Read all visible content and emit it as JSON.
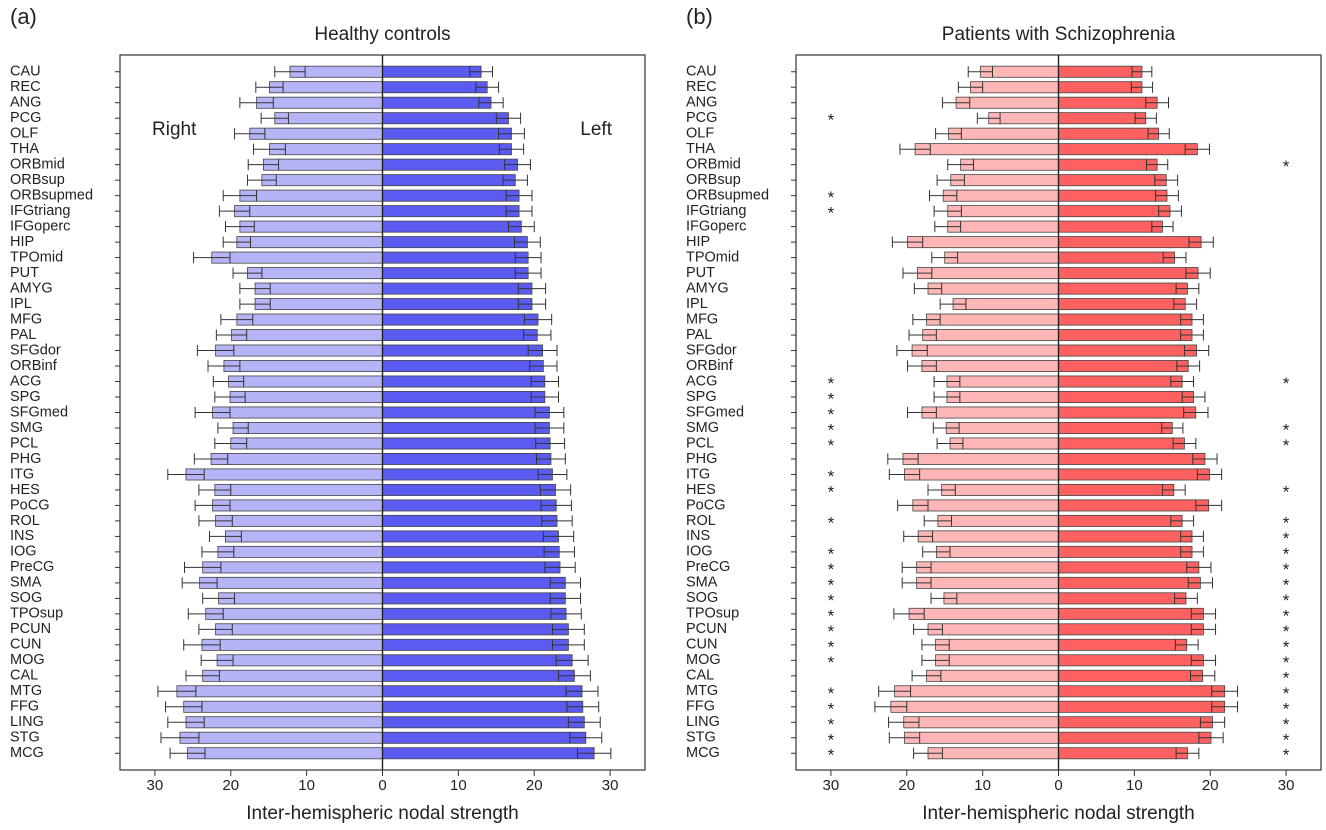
{
  "chart_data": [
    {
      "type": "bar",
      "label": "(a)",
      "title": "Healthy controls",
      "xlabel": "Inter-hemispheric nodal strength",
      "categories": [
        "CAU",
        "REC",
        "ANG",
        "PCG",
        "OLF",
        "THA",
        "ORBmid",
        "ORBsup",
        "ORBsupmed",
        "IFGtriang",
        "IFGoperc",
        "HIP",
        "TPOmid",
        "PUT",
        "AMYG",
        "IPL",
        "MFG",
        "PAL",
        "SFGdor",
        "ORBinf",
        "ACG",
        "SPG",
        "SFGmed",
        "SMG",
        "PCL",
        "PHG",
        "ITG",
        "HES",
        "PoCG",
        "ROL",
        "INS",
        "IOG",
        "PreCG",
        "SMA",
        "SOG",
        "TPOsup",
        "PCUN",
        "CUN",
        "MOG",
        "CAL",
        "MTG",
        "FFG",
        "LING",
        "STG",
        "MCG"
      ],
      "series": [
        {
          "name": "Right",
          "color": "#b4b4f7",
          "values": [
            12.2,
            14.9,
            16.6,
            14.2,
            17.5,
            14.9,
            15.7,
            15.9,
            18.8,
            19.5,
            18.8,
            19.2,
            22.5,
            17.8,
            16.8,
            16.8,
            19.2,
            19.9,
            22.0,
            20.9,
            20.3,
            20.1,
            22.4,
            19.7,
            20.0,
            22.6,
            25.9,
            22.1,
            22.4,
            22.0,
            20.7,
            21.7,
            23.7,
            24.1,
            21.6,
            23.3,
            22.0,
            23.8,
            21.8,
            23.7,
            27.1,
            26.2,
            25.9,
            26.7,
            25.7
          ],
          "errors": [
            2.0,
            1.8,
            2.2,
            1.8,
            2.0,
            2.1,
            2.0,
            1.9,
            2.2,
            2.0,
            1.9,
            1.8,
            2.4,
            1.9,
            2.0,
            2.0,
            2.1,
            2.0,
            2.4,
            2.1,
            2.0,
            2.0,
            2.3,
            2.0,
            2.1,
            2.2,
            2.4,
            2.1,
            2.3,
            2.2,
            2.1,
            2.1,
            2.4,
            2.3,
            2.1,
            2.3,
            2.2,
            2.4,
            2.1,
            2.2,
            2.5,
            2.4,
            2.4,
            2.5,
            2.3
          ]
        },
        {
          "name": "Left",
          "color": "#5b5bf2",
          "values": [
            13.0,
            13.8,
            14.3,
            16.6,
            17.0,
            17.0,
            17.8,
            17.5,
            18.0,
            18.0,
            18.3,
            19.1,
            19.2,
            19.2,
            19.7,
            19.7,
            20.5,
            20.4,
            21.1,
            21.2,
            21.4,
            21.4,
            22.0,
            22.0,
            22.1,
            22.2,
            22.4,
            22.8,
            22.9,
            23.0,
            23.2,
            23.3,
            23.4,
            24.1,
            24.1,
            24.2,
            24.5,
            24.5,
            25.0,
            25.3,
            26.3,
            26.4,
            26.6,
            26.8,
            27.9
          ],
          "errors": [
            1.5,
            1.5,
            1.6,
            1.6,
            1.7,
            1.6,
            1.7,
            1.6,
            1.7,
            1.7,
            1.7,
            1.7,
            1.7,
            1.7,
            1.8,
            1.8,
            1.8,
            1.8,
            1.9,
            1.8,
            1.8,
            1.8,
            1.9,
            1.9,
            1.9,
            1.9,
            1.9,
            2.0,
            2.0,
            2.0,
            2.0,
            2.0,
            2.0,
            2.0,
            2.0,
            2.0,
            2.1,
            2.1,
            2.1,
            2.1,
            2.1,
            2.1,
            2.1,
            2.1,
            2.2
          ]
        }
      ],
      "xlim": [
        -34.6,
        34.6
      ],
      "xticks": [
        {
          "value": -30,
          "label": "30"
        },
        {
          "value": -20,
          "label": "20"
        },
        {
          "value": -10,
          "label": "10"
        },
        0,
        10,
        20,
        30
      ]
    },
    {
      "type": "bar",
      "label": "(b)",
      "title": "Patients with Schizophrenia",
      "xlabel": "Inter-hemispheric nodal strength",
      "categories": [
        "CAU",
        "REC",
        "ANG",
        "PCG",
        "OLF",
        "THA",
        "ORBmid",
        "ORBsup",
        "ORBsupmed",
        "IFGtriang",
        "IFGoperc",
        "HIP",
        "TPOmid",
        "PUT",
        "AMYG",
        "IPL",
        "MFG",
        "PAL",
        "SFGdor",
        "ORBinf",
        "ACG",
        "SPG",
        "SFGmed",
        "SMG",
        "PCL",
        "PHG",
        "ITG",
        "HES",
        "PoCG",
        "ROL",
        "INS",
        "IOG",
        "PreCG",
        "SMA",
        "SOG",
        "TPOsup",
        "PCUN",
        "CUN",
        "MOG",
        "CAL",
        "MTG",
        "FFG",
        "LING",
        "STG",
        "MCG"
      ],
      "series": [
        {
          "color": "#ffb6b6",
          "values": [
            10.3,
            11.6,
            13.5,
            9.2,
            14.5,
            18.9,
            12.9,
            14.2,
            15.2,
            14.6,
            14.6,
            19.9,
            15.0,
            18.6,
            17.2,
            13.9,
            17.4,
            17.9,
            19.3,
            18.0,
            14.7,
            14.7,
            18.0,
            14.8,
            14.3,
            20.5,
            20.3,
            15.4,
            19.2,
            15.9,
            18.5,
            16.1,
            18.7,
            18.7,
            15.1,
            19.7,
            17.2,
            16.2,
            16.2,
            17.4,
            21.6,
            22.1,
            20.4,
            20.3,
            17.2
          ],
          "errors": [
            1.6,
            1.6,
            1.8,
            1.5,
            1.7,
            2.0,
            1.7,
            1.8,
            1.8,
            1.8,
            1.7,
            2.0,
            1.7,
            1.9,
            1.8,
            1.7,
            1.8,
            1.8,
            2.0,
            1.9,
            1.7,
            1.7,
            1.9,
            1.7,
            1.7,
            2.0,
            2.0,
            1.8,
            2.0,
            1.8,
            1.9,
            1.8,
            1.9,
            1.9,
            1.7,
            2.0,
            1.9,
            1.8,
            1.8,
            1.9,
            2.1,
            2.1,
            2.0,
            2.0,
            1.9
          ],
          "significance": [
            null,
            null,
            null,
            "*",
            null,
            null,
            null,
            null,
            "*",
            "*",
            null,
            null,
            null,
            null,
            null,
            null,
            null,
            null,
            null,
            null,
            "*",
            "*",
            "*",
            "*",
            "*",
            null,
            "*",
            "*",
            null,
            "*",
            null,
            "*",
            "*",
            "*",
            "*",
            "*",
            "*",
            "*",
            "*",
            null,
            "*",
            "*",
            "*",
            "*",
            "*"
          ]
        },
        {
          "color": "#ff6060",
          "values": [
            11.0,
            11.0,
            13.0,
            11.5,
            13.2,
            18.3,
            13.0,
            14.2,
            14.3,
            14.7,
            13.7,
            18.8,
            15.3,
            18.4,
            17.0,
            16.7,
            17.6,
            17.6,
            18.2,
            17.1,
            16.3,
            17.8,
            18.1,
            15.0,
            16.6,
            19.3,
            19.9,
            15.2,
            19.8,
            16.3,
            17.6,
            17.6,
            18.5,
            18.7,
            16.8,
            19.1,
            19.1,
            16.9,
            19.1,
            19.0,
            21.9,
            21.9,
            20.3,
            20.1,
            17.0
          ],
          "errors": [
            1.3,
            1.4,
            1.5,
            1.4,
            1.4,
            1.6,
            1.4,
            1.5,
            1.5,
            1.5,
            1.4,
            1.6,
            1.5,
            1.6,
            1.5,
            1.5,
            1.5,
            1.5,
            1.6,
            1.5,
            1.5,
            1.5,
            1.6,
            1.4,
            1.5,
            1.6,
            1.6,
            1.5,
            1.7,
            1.5,
            1.5,
            1.5,
            1.6,
            1.6,
            1.5,
            1.6,
            1.6,
            1.5,
            1.6,
            1.6,
            1.7,
            1.7,
            1.6,
            1.6,
            1.5
          ],
          "significance": [
            null,
            null,
            null,
            null,
            null,
            null,
            "*",
            null,
            null,
            null,
            null,
            null,
            null,
            null,
            null,
            null,
            null,
            null,
            null,
            null,
            "*",
            null,
            null,
            "*",
            "*",
            null,
            null,
            "*",
            null,
            "*",
            "*",
            "*",
            "*",
            "*",
            "*",
            "*",
            "*",
            "*",
            "*",
            "*",
            "*",
            "*",
            "*",
            "*",
            "*"
          ]
        }
      ],
      "xlim": [
        -34.6,
        34.6
      ],
      "xticks": [
        {
          "value": -30,
          "label": "30"
        },
        {
          "value": -20,
          "label": "20"
        },
        {
          "value": -10,
          "label": "10"
        },
        0,
        10,
        20,
        30
      ]
    }
  ]
}
